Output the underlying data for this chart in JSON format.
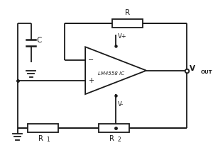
{
  "bg_color": "#ffffff",
  "line_color": "#1a1a1a",
  "text_color": "#1a1a1a",
  "opamp_label": "LM4558 IC",
  "vout_label": "V",
  "vout_sub": "OUT",
  "vplus_label": "V+",
  "vminus_label": "V-",
  "r_label": "R",
  "c_label": "C",
  "r1_label": "R",
  "r1_sub": "1",
  "r2_label": "R",
  "r2_sub": "2",
  "lw": 1.3
}
